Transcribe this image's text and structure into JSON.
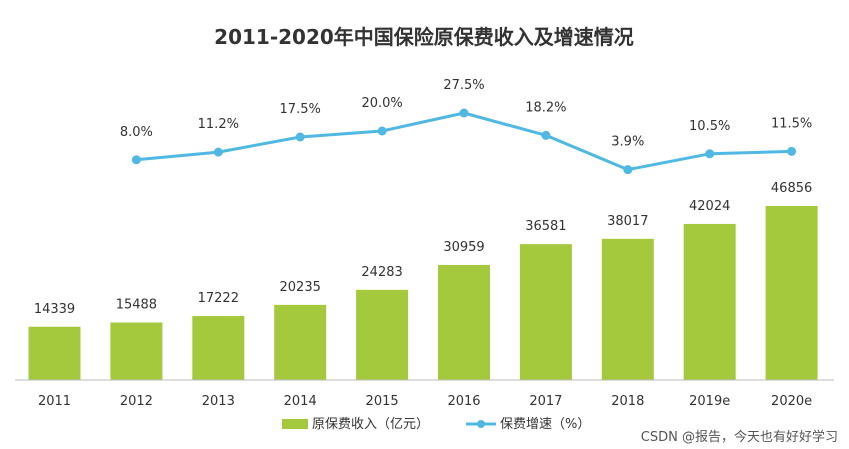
{
  "chart_data": {
    "type": "bar+line",
    "title": "2011-2020年中国保险原保费收入及增速情况",
    "categories": [
      "2011",
      "2012",
      "2013",
      "2014",
      "2015",
      "2016",
      "2017",
      "2018",
      "2019e",
      "2020e"
    ],
    "series": [
      {
        "name": "原保费收入（亿元）",
        "type": "bar",
        "values": [
          14339,
          15488,
          17222,
          20235,
          24283,
          30959,
          36581,
          38017,
          42024,
          46856
        ]
      },
      {
        "name": "保费增速（%）",
        "type": "line",
        "values": [
          null,
          8.0,
          11.2,
          17.5,
          20.0,
          27.5,
          18.2,
          3.9,
          10.5,
          11.5
        ],
        "labels": [
          "",
          "8.0%",
          "11.2%",
          "17.5%",
          "20.0%",
          "27.5%",
          "18.2%",
          "3.9%",
          "10.5%",
          "11.5%"
        ]
      }
    ],
    "legend_position": "bottom",
    "grid": false,
    "colors": {
      "bar": "#a4c93d",
      "line": "#4fb8e3",
      "axis": "#bbbbbb"
    }
  },
  "watermark": "CSDN @报告，今天也有好好学习"
}
